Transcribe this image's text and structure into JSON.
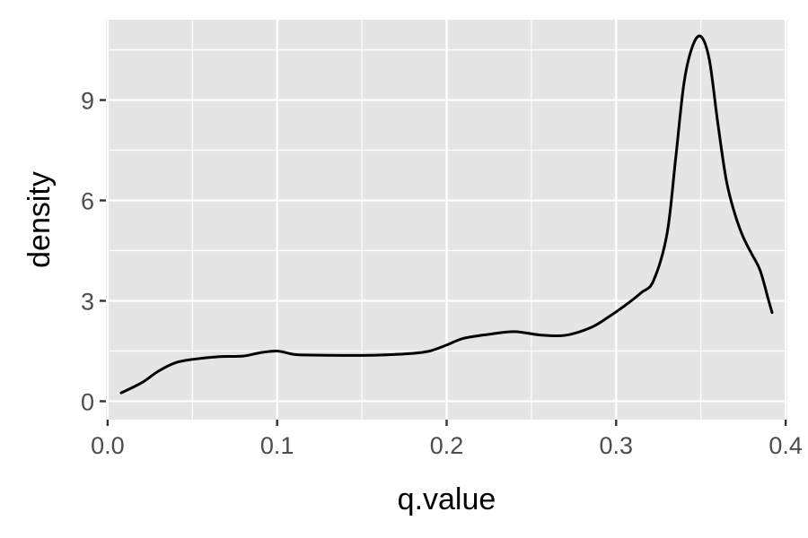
{
  "chart_data": {
    "type": "line",
    "title": "",
    "xlabel": "q.value",
    "ylabel": "density",
    "xlim": [
      -0.001,
      0.401
    ],
    "ylim": [
      -0.55,
      11.4
    ],
    "x_ticks": [
      0.0,
      0.1,
      0.2,
      0.3,
      0.4
    ],
    "x_tick_labels": [
      "0.0",
      "0.1",
      "0.2",
      "0.3",
      "0.4"
    ],
    "y_ticks": [
      0,
      3,
      6,
      9
    ],
    "y_tick_labels": [
      "0",
      "3",
      "6",
      "9"
    ],
    "x_minor": [
      0.05,
      0.15,
      0.25,
      0.35
    ],
    "y_minor": [
      1.5,
      4.5,
      7.5,
      10.5
    ],
    "grid": true,
    "legend": "none",
    "colors": {
      "panel": "#e5e5e5",
      "grid": "#ffffff",
      "line": "#000000",
      "tick": "#333333",
      "tick_text": "#4d4d4d"
    },
    "series": [
      {
        "x": [
          0.008,
          0.02,
          0.03,
          0.04,
          0.05,
          0.065,
          0.08,
          0.09,
          0.1,
          0.11,
          0.12,
          0.14,
          0.16,
          0.18,
          0.19,
          0.2,
          0.21,
          0.225,
          0.24,
          0.255,
          0.27,
          0.285,
          0.295,
          0.305,
          0.315,
          0.322,
          0.33,
          0.335,
          0.34,
          0.345,
          0.35,
          0.355,
          0.36,
          0.365,
          0.37,
          0.375,
          0.38,
          0.385,
          0.39,
          0.392
        ],
        "values": [
          0.25,
          0.55,
          0.9,
          1.15,
          1.25,
          1.33,
          1.35,
          1.45,
          1.5,
          1.4,
          1.38,
          1.37,
          1.38,
          1.43,
          1.5,
          1.68,
          1.88,
          2.0,
          2.08,
          1.98,
          1.97,
          2.2,
          2.5,
          2.85,
          3.25,
          3.6,
          5.0,
          7.2,
          9.5,
          10.6,
          10.9,
          10.2,
          8.3,
          6.6,
          5.6,
          4.9,
          4.4,
          3.9,
          3.0,
          2.65
        ]
      }
    ]
  }
}
